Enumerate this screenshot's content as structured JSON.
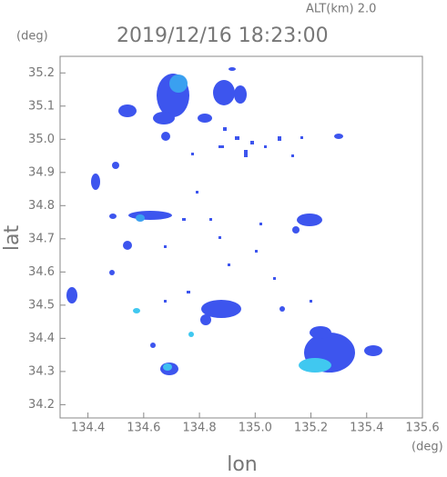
{
  "chart_data": {
    "type": "map",
    "subtitle": "ALT(km) 2.0",
    "title": "2019/12/16 18:23:00",
    "y_unit": "(deg)",
    "x_unit": "(deg)",
    "xlabel": "lon",
    "ylabel": "lat",
    "xlim": [
      134.3,
      135.6
    ],
    "ylim": [
      34.16,
      35.25
    ],
    "xticks": [
      134.4,
      134.6,
      134.8,
      {
        "value": 135.0,
        "label": "135.0"
      },
      135.2,
      135.4,
      135.6
    ],
    "yticks": [
      34.2,
      34.3,
      34.4,
      34.5,
      34.6,
      34.7,
      34.8,
      34.9,
      {
        "value": 35.0,
        "label": "35.0"
      },
      35.1,
      35.2
    ]
  }
}
